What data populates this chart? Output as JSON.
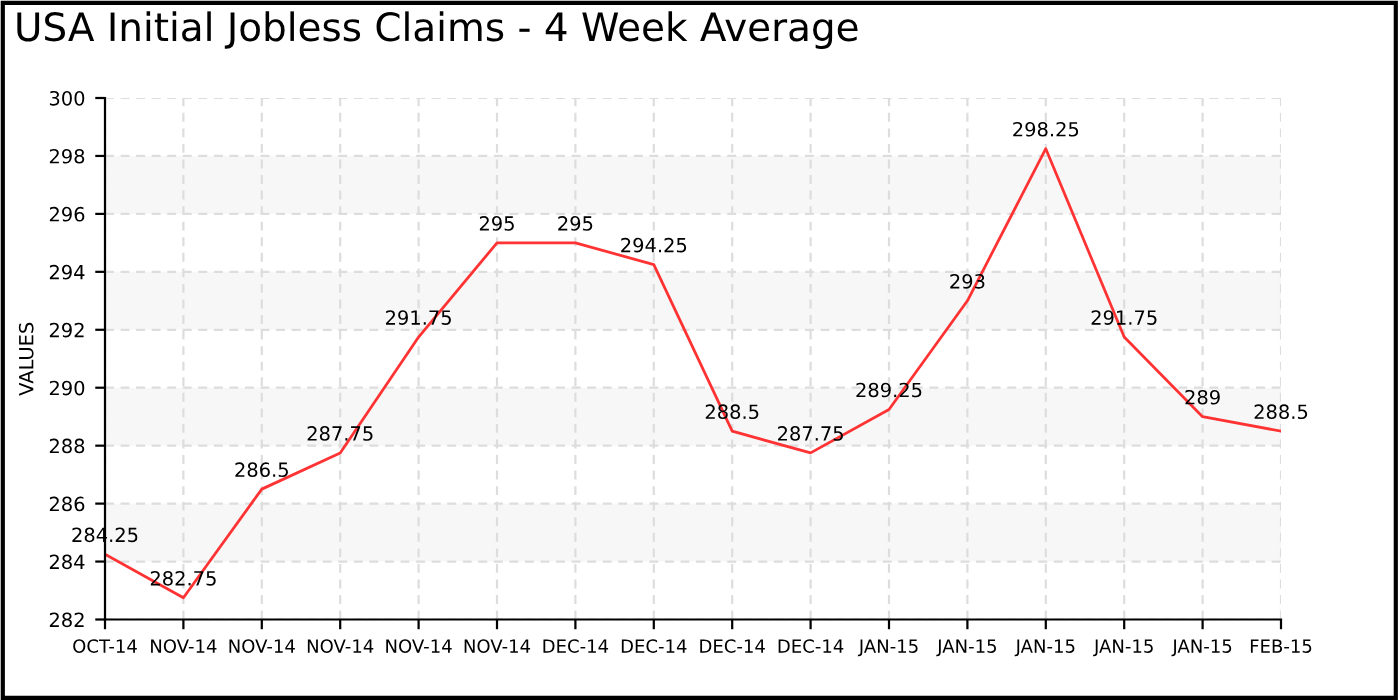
{
  "chart_data": {
    "type": "line",
    "title": "USA Initial Jobless Claims - 4 Week Average",
    "ylabel": "VALUES",
    "categories": [
      "OCT-14",
      "NOV-14",
      "NOV-14",
      "NOV-14",
      "NOV-14",
      "NOV-14",
      "DEC-14",
      "DEC-14",
      "DEC-14",
      "DEC-14",
      "JAN-15",
      "JAN-15",
      "JAN-15",
      "JAN-15",
      "JAN-15",
      "FEB-15"
    ],
    "series": [
      {
        "color": "#ff3333",
        "values": [
          284.25,
          282.75,
          286.5,
          287.75,
          291.75,
          295,
          295,
          294.25,
          288.5,
          287.75,
          289.25,
          293,
          298.25,
          291.75,
          289,
          288.5
        ]
      }
    ],
    "ylim": [
      282,
      300
    ],
    "yticks": [
      282,
      284,
      286,
      288,
      290,
      292,
      294,
      296,
      298,
      300
    ],
    "grid": true,
    "data_labels": true,
    "marker": "none",
    "line_style": "solid"
  }
}
